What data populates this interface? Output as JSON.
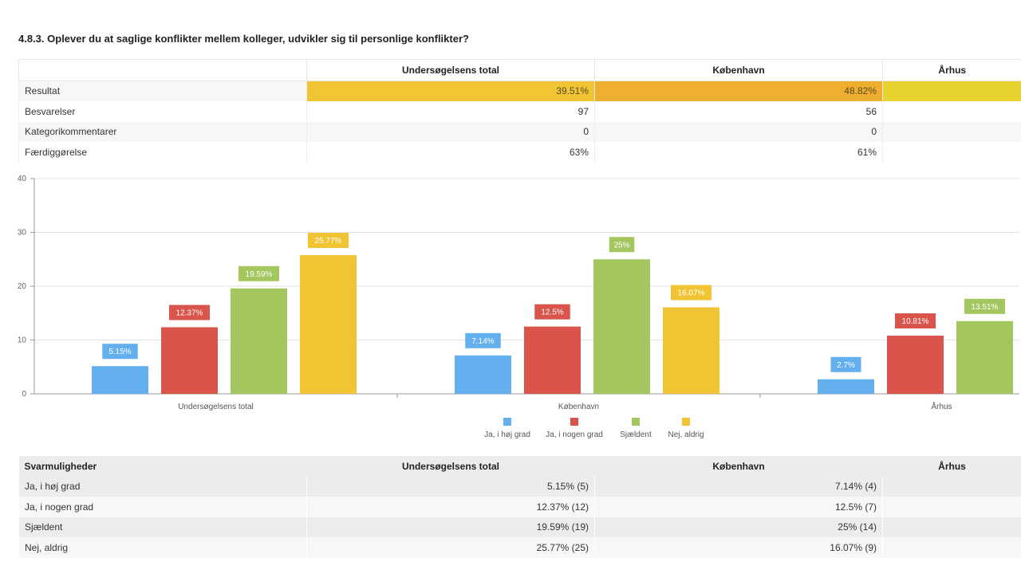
{
  "title": "4.8.3. Oplever du at saglige konflikter mellem kolleger, udvikler sig til personlige konflikter?",
  "summary_table": {
    "columns": [
      "Undersøgelsens total",
      "København",
      "Århus"
    ],
    "rows": [
      {
        "label": "Resultat",
        "values": [
          "39.51%",
          "48.82%",
          ""
        ],
        "colors": [
          "#f0c433",
          "#eeae2f",
          "#e8d22f"
        ]
      },
      {
        "label": "Besvarelser",
        "values": [
          "97",
          "56",
          ""
        ]
      },
      {
        "label": "Kategorikommentarer",
        "values": [
          "0",
          "0",
          ""
        ]
      },
      {
        "label": "Færdiggørelse",
        "values": [
          "63%",
          "61%",
          ""
        ]
      }
    ]
  },
  "chart_data": {
    "type": "bar",
    "categories": [
      "Undersøgelsens total",
      "København",
      "Århus"
    ],
    "ylim": [
      0,
      40
    ],
    "yticks": [
      0,
      10,
      20,
      30,
      40
    ],
    "grid": true,
    "legend_placement": "bottom",
    "series": [
      {
        "name": "Ja, i høj grad",
        "color": "#64b0ef",
        "values": [
          5.15,
          7.14,
          2.7
        ],
        "labels": [
          "5.15%",
          "7.14%",
          "2.7%"
        ]
      },
      {
        "name": "Ja, i nogen grad",
        "color": "#d9544a",
        "values": [
          12.37,
          12.5,
          10.81
        ],
        "labels": [
          "12.37%",
          "12.5%",
          "10.81%"
        ]
      },
      {
        "name": "Sjældent",
        "color": "#a3c75e",
        "values": [
          19.59,
          25,
          13.51
        ],
        "labels": [
          "19.59%",
          "25%",
          "13.51%"
        ]
      },
      {
        "name": "Nej, aldrig",
        "color": "#f0c433",
        "values": [
          25.77,
          16.07,
          null
        ],
        "labels": [
          "25.77%",
          "16.07%",
          ""
        ]
      }
    ]
  },
  "answer_table": {
    "header": [
      "Svarmuligheder",
      "Undersøgelsens total",
      "København",
      "Århus"
    ],
    "rows": [
      {
        "label": "Ja, i høj grad",
        "values": [
          "5.15% (5)",
          "7.14% (4)",
          ""
        ]
      },
      {
        "label": "Ja, i nogen grad",
        "values": [
          "12.37% (12)",
          "12.5% (7)",
          ""
        ]
      },
      {
        "label": "Sjældent",
        "values": [
          "19.59% (19)",
          "25% (14)",
          ""
        ]
      },
      {
        "label": "Nej, aldrig",
        "values": [
          "25.77% (25)",
          "16.07% (9)",
          ""
        ]
      }
    ]
  }
}
